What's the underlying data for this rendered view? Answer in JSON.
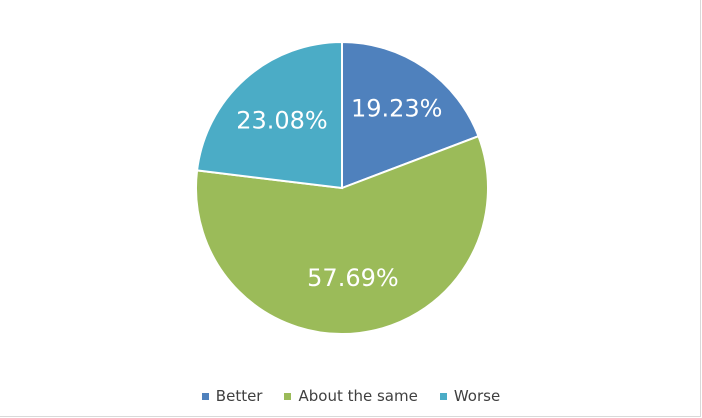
{
  "chart_data": {
    "type": "pie",
    "categories": [
      "Better",
      "About the same",
      "Worse"
    ],
    "values": [
      19.23,
      57.69,
      23.08
    ],
    "data_labels": [
      "19.23%",
      "57.69%",
      "23.08%"
    ],
    "colors": [
      "#4f81bd",
      "#9bbb59",
      "#4bacc6"
    ],
    "start_angle_deg": 0,
    "direction": "clockwise",
    "legend_position": "bottom",
    "title": ""
  }
}
